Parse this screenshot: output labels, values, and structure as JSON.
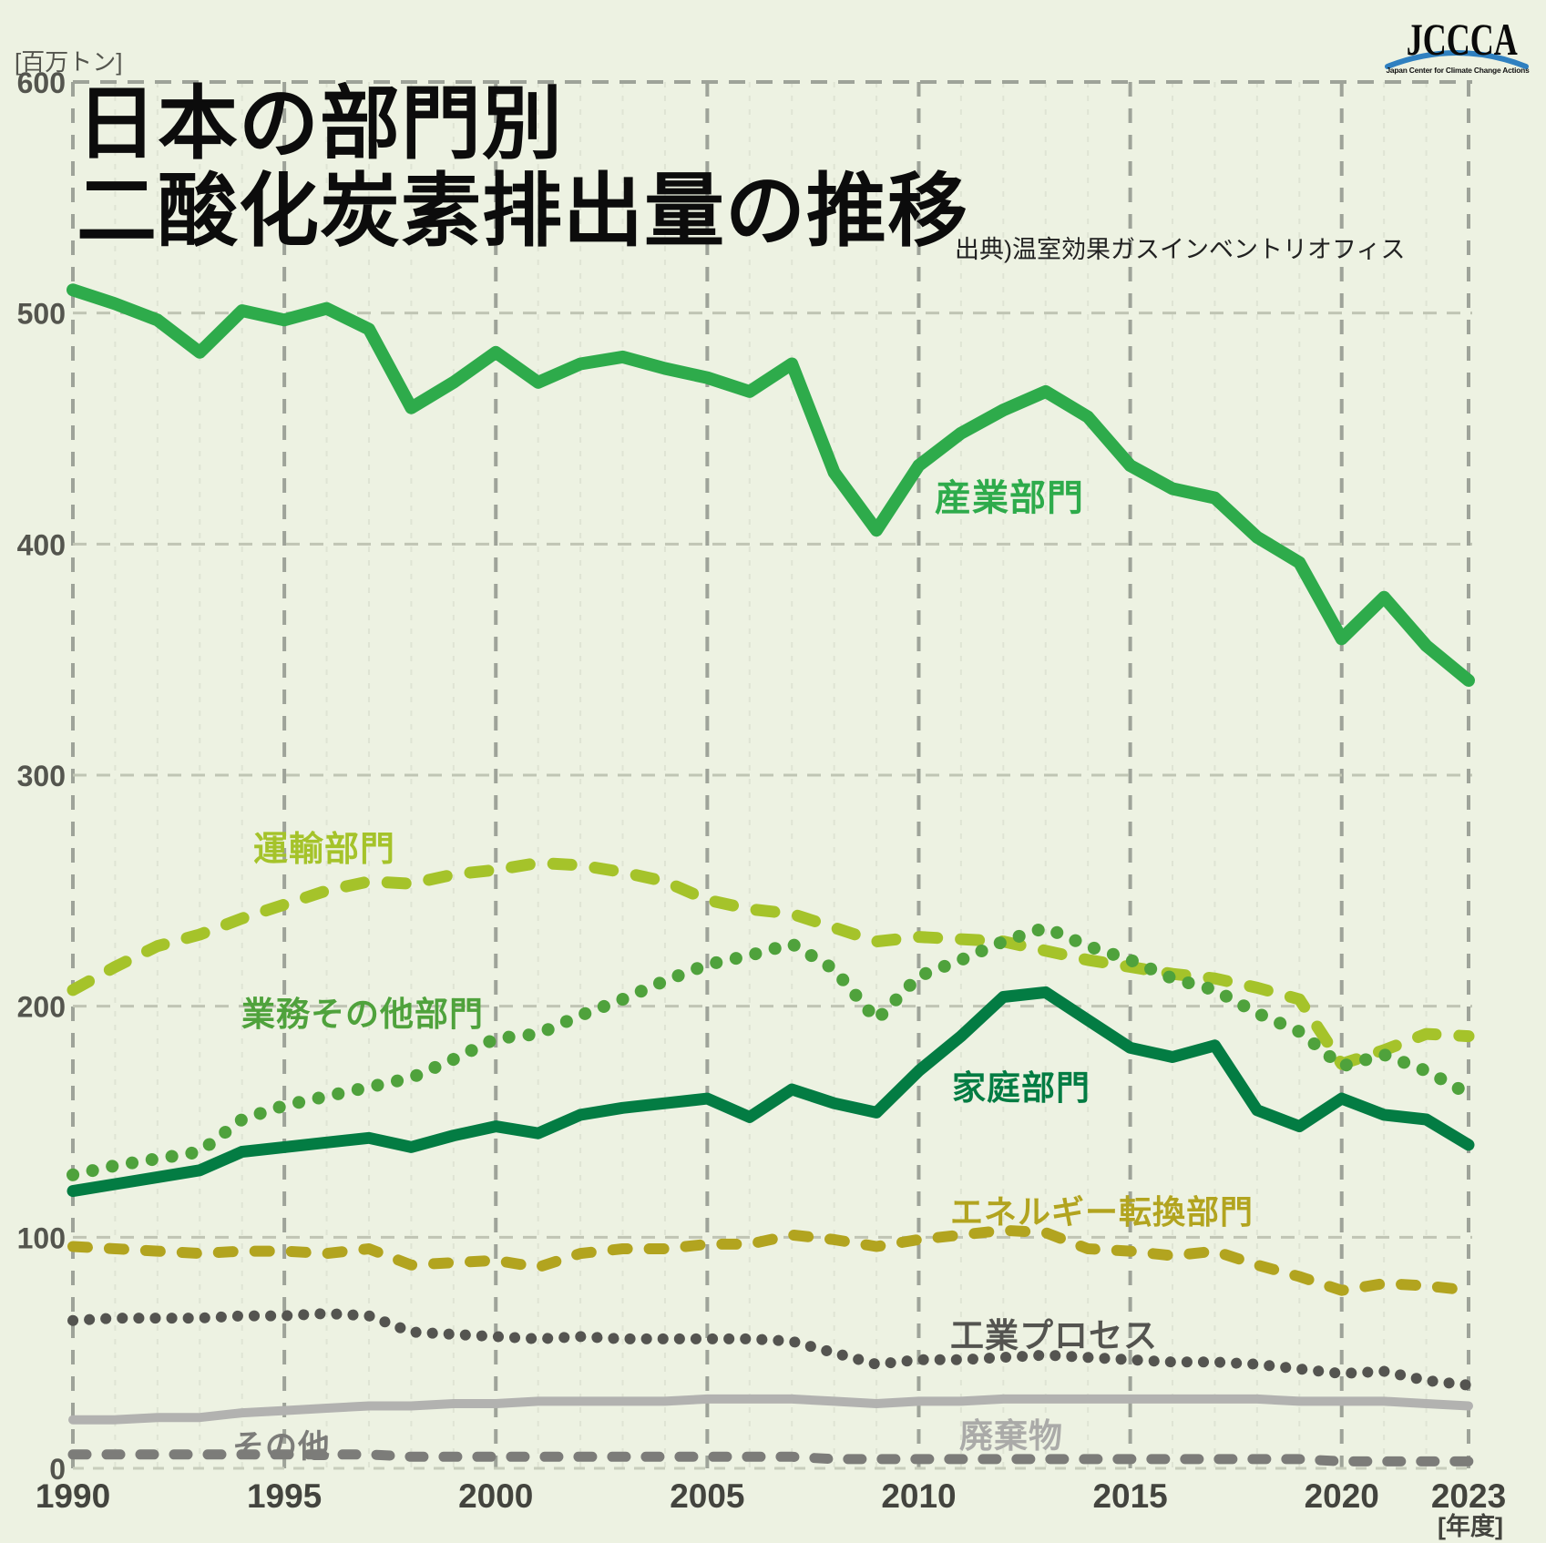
{
  "header": {
    "title_line1": "日本の部門別",
    "title_line2": "二酸化炭素排出量の推移",
    "source": "出典)温室効果ガスインベントリオフィス",
    "unit_label": "[百万トン]",
    "xaxis_unit_label": "[年度]"
  },
  "logo": {
    "name": "JCCCA",
    "caption": "Japan Center for Climate Change Actions",
    "arc_color": "#2f80c0"
  },
  "chart_data": {
    "type": "line",
    "title": "日本の部門別二酸化炭素排出量の推移",
    "ylabel": "百万トン",
    "xlabel": "年度",
    "ylim": [
      0,
      600
    ],
    "grid": true,
    "legend_position": "inline-labels",
    "x": [
      1990,
      1991,
      1992,
      1993,
      1994,
      1995,
      1996,
      1997,
      1998,
      1999,
      2000,
      2001,
      2002,
      2003,
      2004,
      2005,
      2006,
      2007,
      2008,
      2009,
      2010,
      2011,
      2012,
      2013,
      2014,
      2015,
      2016,
      2017,
      2018,
      2019,
      2020,
      2021,
      2022,
      2023
    ],
    "xticks": [
      1990,
      1995,
      2000,
      2005,
      2010,
      2015,
      2020,
      2023
    ],
    "yticks": [
      0,
      100,
      200,
      300,
      400,
      500,
      600
    ],
    "series": [
      {
        "key": "other",
        "label": "その他",
        "color": "#7c7c79",
        "style": "dashed",
        "width": 11,
        "values": [
          6,
          6,
          6,
          6,
          6,
          6,
          6,
          6,
          5,
          5,
          5,
          5,
          5,
          5,
          5,
          5,
          5,
          5,
          4,
          4,
          4,
          4,
          4,
          4,
          4,
          4,
          4,
          4,
          4,
          4,
          3,
          3,
          3,
          3
        ]
      },
      {
        "key": "waste",
        "label": "廃棄物",
        "color": "#b2b2b0",
        "style": "solid",
        "width": 10,
        "values": [
          21,
          21,
          22,
          22,
          24,
          25,
          26,
          27,
          27,
          28,
          28,
          29,
          29,
          29,
          29,
          30,
          30,
          30,
          29,
          28,
          29,
          29,
          30,
          30,
          30,
          30,
          30,
          30,
          30,
          29,
          29,
          29,
          28,
          27
        ]
      },
      {
        "key": "indprocess",
        "label": "工業プロセス",
        "color": "#545450",
        "style": "dotted",
        "width": 12,
        "values": [
          64,
          65,
          65,
          65,
          66,
          66,
          67,
          66,
          59,
          58,
          57,
          56,
          57,
          56,
          56,
          56,
          56,
          55,
          50,
          45,
          47,
          47,
          48,
          49,
          48,
          47,
          46,
          46,
          45,
          43,
          41,
          42,
          38,
          36
        ]
      },
      {
        "key": "energy",
        "label": "エネルギー転換部門",
        "color": "#b2a41f",
        "style": "dashed",
        "width": 12,
        "values": [
          96,
          95,
          94,
          93,
          94,
          94,
          93,
          95,
          88,
          89,
          90,
          87,
          93,
          95,
          95,
          97,
          97,
          101,
          99,
          96,
          99,
          101,
          103,
          102,
          95,
          94,
          92,
          94,
          88,
          83,
          77,
          80,
          79,
          77
        ]
      },
      {
        "key": "transport",
        "label": "運輸部門",
        "color": "#a5c32a",
        "style": "dashed",
        "width": 13,
        "values": [
          207,
          217,
          226,
          231,
          238,
          244,
          250,
          254,
          253,
          257,
          259,
          262,
          261,
          258,
          254,
          246,
          242,
          240,
          234,
          228,
          230,
          229,
          228,
          224,
          220,
          217,
          214,
          212,
          208,
          203,
          175,
          181,
          188,
          187
        ]
      },
      {
        "key": "commercial",
        "label": "業務その他部門",
        "color": "#4fa23c",
        "style": "dotted",
        "width": 14,
        "values": [
          127,
          131,
          134,
          137,
          151,
          157,
          161,
          165,
          169,
          177,
          186,
          188,
          196,
          203,
          211,
          218,
          222,
          227,
          216,
          194,
          213,
          220,
          228,
          234,
          226,
          220,
          212,
          207,
          197,
          189,
          174,
          179,
          172,
          162
        ]
      },
      {
        "key": "household",
        "label": "家庭部門",
        "color": "#037c43",
        "style": "solid",
        "width": 13,
        "values": [
          120,
          123,
          126,
          129,
          137,
          139,
          141,
          143,
          139,
          144,
          148,
          145,
          153,
          156,
          158,
          160,
          152,
          164,
          158,
          154,
          172,
          187,
          204,
          206,
          194,
          182,
          178,
          183,
          155,
          148,
          160,
          153,
          151,
          140
        ]
      },
      {
        "key": "industry",
        "label": "産業部門",
        "color": "#2eab4b",
        "style": "solid",
        "width": 14,
        "values": [
          510,
          504,
          497,
          483,
          501,
          497,
          502,
          493,
          459,
          470,
          483,
          470,
          478,
          481,
          476,
          472,
          466,
          478,
          431,
          406,
          434,
          448,
          458,
          466,
          455,
          434,
          424,
          420,
          403,
          392,
          359,
          377,
          356,
          341
        ]
      }
    ]
  }
}
